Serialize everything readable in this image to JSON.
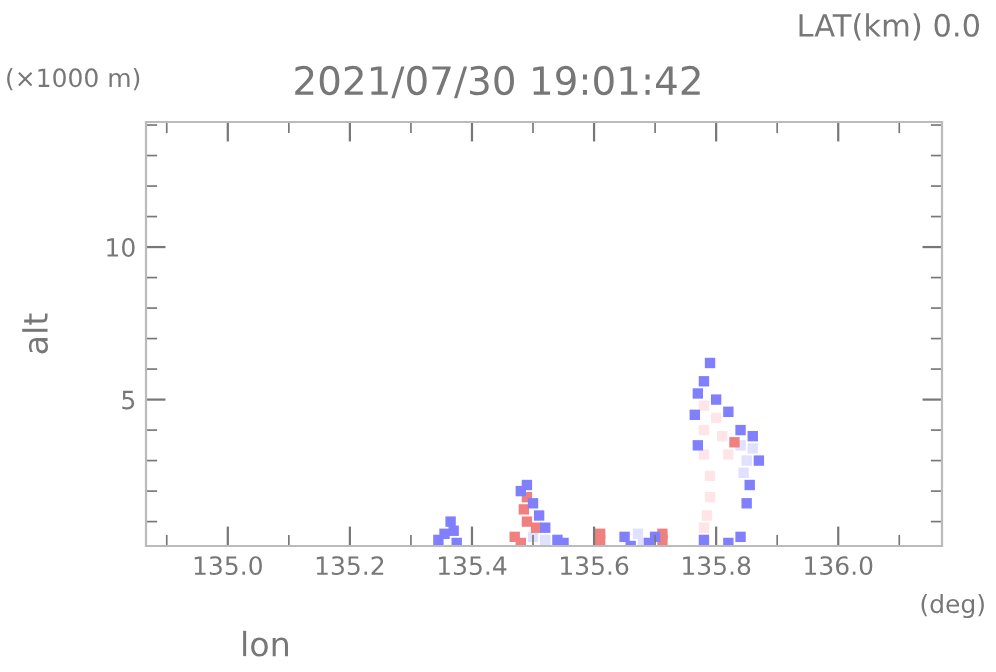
{
  "chart_data": {
    "type": "scatter",
    "title": "2021/07/30 19:01:42",
    "subtitle": "LAT(km) 0.0",
    "xlabel": "lon",
    "ylabel": "alt",
    "annotations": [
      "(×1000 m)",
      "(deg)"
    ],
    "xlim": [
      134.866,
      136.17
    ],
    "ylim": [
      0.2,
      14.1
    ],
    "xticks": [
      {
        "value": 135.0,
        "label": "135.0"
      },
      135.2,
      135.4,
      135.6,
      135.8,
      {
        "value": 136.0,
        "label": "136.0"
      }
    ],
    "yticks": [
      5,
      10
    ],
    "grid": false,
    "marker": "square",
    "series": [
      {
        "color": "#ffe4e8",
        "x": [
          135.78,
          135.78,
          135.78,
          135.79,
          135.79,
          135.785,
          135.78,
          135.8,
          135.81,
          135.82
        ],
        "values": [
          4.8,
          4.0,
          3.2,
          2.5,
          1.8,
          1.2,
          0.8,
          4.4,
          3.8,
          3.2
        ]
      },
      {
        "color": "#e0e0ff",
        "x": [
          135.84,
          135.85,
          135.845,
          135.86,
          135.5,
          135.52,
          135.672,
          135.68
        ],
        "values": [
          3.5,
          3.0,
          2.6,
          3.4,
          0.5,
          0.4,
          0.6,
          0.3
        ]
      },
      {
        "color": "#f08080",
        "x": [
          135.49,
          135.485,
          135.49,
          135.47,
          135.48,
          135.505,
          135.61,
          135.61,
          135.712,
          135.712,
          135.83
        ],
        "values": [
          1.8,
          1.4,
          1.0,
          0.5,
          0.3,
          0.8,
          0.4,
          0.6,
          0.4,
          0.6,
          3.6
        ]
      },
      {
        "color": "#8080ff",
        "x": [
          135.345,
          135.355,
          135.365,
          135.37,
          135.375,
          135.49,
          135.48,
          135.5,
          135.51,
          135.52,
          135.54,
          135.55,
          135.65,
          135.66,
          135.69,
          135.7,
          135.79,
          135.78,
          135.77,
          135.765,
          135.77,
          135.8,
          135.82,
          135.84,
          135.86,
          135.87,
          135.855,
          135.85,
          135.84,
          135.82,
          135.78
        ],
        "values": [
          0.4,
          0.6,
          1.0,
          0.7,
          0.3,
          2.2,
          2.0,
          1.6,
          1.2,
          0.8,
          0.4,
          0.3,
          0.5,
          0.2,
          0.3,
          0.5,
          6.2,
          5.6,
          5.2,
          4.5,
          3.5,
          5.0,
          4.6,
          4.0,
          3.8,
          3.0,
          2.2,
          1.6,
          0.5,
          0.3,
          0.4
        ]
      }
    ]
  }
}
